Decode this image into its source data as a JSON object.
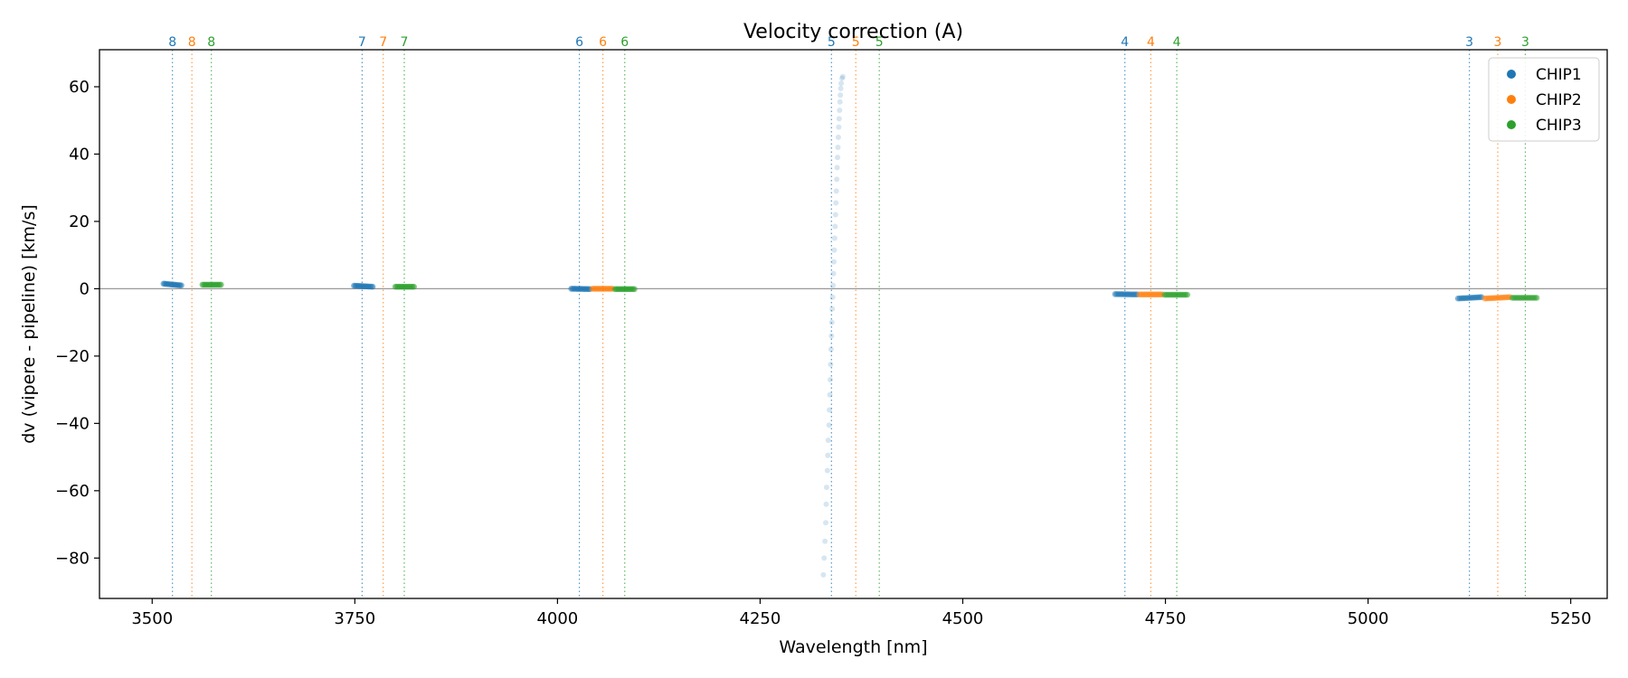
{
  "chart_data": {
    "type": "scatter",
    "title": "Velocity correction (A)",
    "xlabel": "Wavelength [nm]",
    "ylabel": "dv (vipere - pipeline) [km/s]",
    "xlim": [
      3435,
      5295
    ],
    "ylim": [
      -92,
      71
    ],
    "xticks": [
      3500,
      3750,
      4000,
      4250,
      4500,
      4750,
      5000,
      5250
    ],
    "yticks": [
      -80,
      -60,
      -40,
      -20,
      0,
      20,
      40,
      60
    ],
    "zero_line": 0,
    "grid": false,
    "legend": {
      "position": "top-right",
      "entries": [
        "CHIP1",
        "CHIP2",
        "CHIP3"
      ]
    },
    "colors": {
      "CHIP1": "#1f77b4",
      "CHIP2": "#ff7f0e",
      "CHIP3": "#2ca02c",
      "zero": "#999999"
    },
    "order_markers": [
      {
        "order": "8",
        "chip": "CHIP1",
        "x": 3525
      },
      {
        "order": "8",
        "chip": "CHIP2",
        "x": 3549
      },
      {
        "order": "8",
        "chip": "CHIP3",
        "x": 3573
      },
      {
        "order": "7",
        "chip": "CHIP1",
        "x": 3759
      },
      {
        "order": "7",
        "chip": "CHIP2",
        "x": 3785
      },
      {
        "order": "7",
        "chip": "CHIP3",
        "x": 3811
      },
      {
        "order": "6",
        "chip": "CHIP1",
        "x": 4027
      },
      {
        "order": "6",
        "chip": "CHIP2",
        "x": 4056
      },
      {
        "order": "6",
        "chip": "CHIP3",
        "x": 4083
      },
      {
        "order": "5",
        "chip": "CHIP1",
        "x": 4338
      },
      {
        "order": "5",
        "chip": "CHIP2",
        "x": 4368
      },
      {
        "order": "5",
        "chip": "CHIP3",
        "x": 4397
      },
      {
        "order": "4",
        "chip": "CHIP1",
        "x": 4700
      },
      {
        "order": "4",
        "chip": "CHIP2",
        "x": 4732
      },
      {
        "order": "4",
        "chip": "CHIP3",
        "x": 4764
      },
      {
        "order": "3",
        "chip": "CHIP1",
        "x": 5125
      },
      {
        "order": "3",
        "chip": "CHIP2",
        "x": 5160
      },
      {
        "order": "3",
        "chip": "CHIP3",
        "x": 5194
      }
    ],
    "clusters": [
      {
        "chip": "CHIP1",
        "x_start": 3514,
        "x_end": 3536,
        "y_start": 1.5,
        "y_end": 1.0
      },
      {
        "chip": "CHIP3",
        "x_start": 3562,
        "x_end": 3585,
        "y_start": 1.2,
        "y_end": 1.2
      },
      {
        "chip": "CHIP1",
        "x_start": 3749,
        "x_end": 3772,
        "y_start": 0.9,
        "y_end": 0.6
      },
      {
        "chip": "CHIP3",
        "x_start": 3800,
        "x_end": 3823,
        "y_start": 0.6,
        "y_end": 0.6
      },
      {
        "chip": "CHIP1",
        "x_start": 4017,
        "x_end": 4040,
        "y_start": 0.0,
        "y_end": -0.1
      },
      {
        "chip": "CHIP2",
        "x_start": 4043,
        "x_end": 4068,
        "y_start": 0.0,
        "y_end": 0.0
      },
      {
        "chip": "CHIP3",
        "x_start": 4071,
        "x_end": 4095,
        "y_start": -0.1,
        "y_end": -0.1
      },
      {
        "chip": "CHIP1",
        "x_start": 4688,
        "x_end": 4715,
        "y_start": -1.6,
        "y_end": -1.7
      },
      {
        "chip": "CHIP2",
        "x_start": 4718,
        "x_end": 4746,
        "y_start": -1.7,
        "y_end": -1.7
      },
      {
        "chip": "CHIP3",
        "x_start": 4749,
        "x_end": 4777,
        "y_start": -1.8,
        "y_end": -1.8
      },
      {
        "chip": "CHIP1",
        "x_start": 5111,
        "x_end": 5140,
        "y_start": -2.9,
        "y_end": -2.5
      },
      {
        "chip": "CHIP2",
        "x_start": 5144,
        "x_end": 5175,
        "y_start": -2.9,
        "y_end": -2.5
      },
      {
        "chip": "CHIP3",
        "x_start": 5178,
        "x_end": 5208,
        "y_start": -2.7,
        "y_end": -2.7
      }
    ],
    "outlier_series": {
      "chip": "CHIP1",
      "points": [
        [
          4328,
          -85
        ],
        [
          4329,
          -80
        ],
        [
          4330,
          -75
        ],
        [
          4331,
          -69.5
        ],
        [
          4331.5,
          -64
        ],
        [
          4332,
          -59
        ],
        [
          4333,
          -54
        ],
        [
          4333.5,
          -49.5
        ],
        [
          4334,
          -45
        ],
        [
          4335,
          -40.5
        ],
        [
          4335.5,
          -36
        ],
        [
          4336,
          -31.5
        ],
        [
          4336.5,
          -27
        ],
        [
          4337,
          -22.5
        ],
        [
          4337.5,
          -18
        ],
        [
          4338,
          -14
        ],
        [
          4338.5,
          -10
        ],
        [
          4339,
          -6
        ],
        [
          4339.5,
          -2.5
        ],
        [
          4340,
          1
        ],
        [
          4340.5,
          4.5
        ],
        [
          4341,
          8
        ],
        [
          4341.5,
          11.5
        ],
        [
          4342,
          15
        ],
        [
          4342.5,
          18.5
        ],
        [
          4343,
          22
        ],
        [
          4343.5,
          25.5
        ],
        [
          4344,
          29
        ],
        [
          4344.5,
          32.5
        ],
        [
          4345,
          36
        ],
        [
          4345.5,
          39
        ],
        [
          4346,
          42
        ],
        [
          4346.5,
          45
        ],
        [
          4347,
          48
        ],
        [
          4347.5,
          50.5
        ],
        [
          4348,
          53
        ],
        [
          4348.5,
          55.5
        ],
        [
          4349,
          57.5
        ],
        [
          4349.5,
          59.5
        ],
        [
          4350,
          61
        ],
        [
          4351,
          62.5
        ],
        [
          4352,
          63
        ]
      ]
    }
  }
}
